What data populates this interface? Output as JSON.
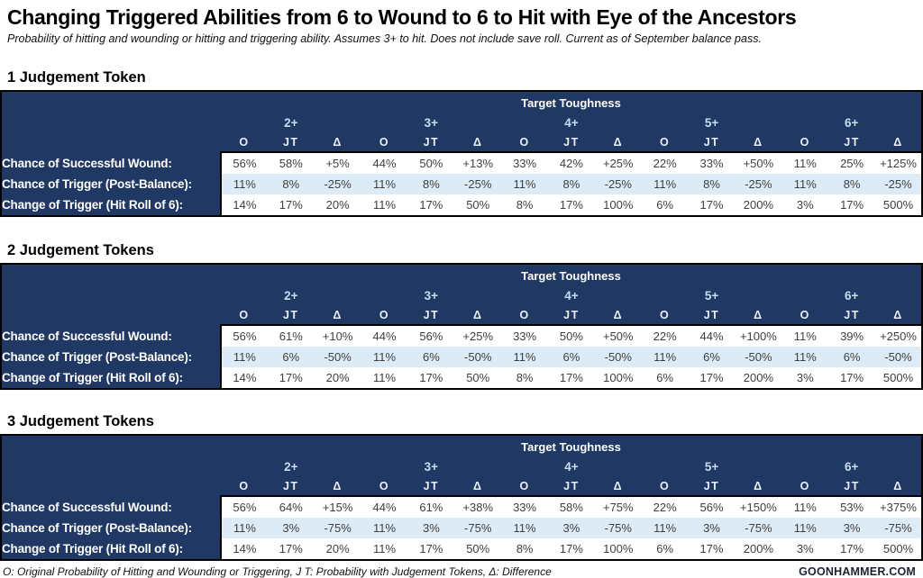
{
  "page": {
    "title": "Changing Triggered Abilities from 6 to Wound to 6 to Hit with Eye of the Ancestors",
    "subtitle": "Probability of hitting and wounding or hitting and triggering ability. Assumes 3+ to hit. Does not include save roll. Current as of September balance pass."
  },
  "colors": {
    "table_background": "#1F3864",
    "stripe_row": "#DDEBF7",
    "cell_text": "#3F3F3F",
    "header_text": "#FFFFFF",
    "group_header_text": "#C9DCF0"
  },
  "footer": {
    "legend": "O: Original Probability of Hitting and Wounding or Triggering, J T: Probability with Judgement Tokens, Δ: Difference",
    "brand": "GOONHAMMER.COM"
  },
  "chart_data": [
    {
      "type": "table",
      "title": "1 Judgement Token",
      "header": "Target Toughness",
      "column_groups": [
        "2+",
        "3+",
        "4+",
        "5+",
        "6+"
      ],
      "sub_columns": [
        "O",
        "JT",
        "Δ"
      ],
      "rows": [
        {
          "label": "Chance of Successful Wound:",
          "values": [
            "56%",
            "58%",
            "+5%",
            "44%",
            "50%",
            "+13%",
            "33%",
            "42%",
            "+25%",
            "22%",
            "33%",
            "+50%",
            "11%",
            "25%",
            "+125%"
          ]
        },
        {
          "label": "Chance of Trigger (Post-Balance):",
          "values": [
            "11%",
            "8%",
            "-25%",
            "11%",
            "8%",
            "-25%",
            "11%",
            "8%",
            "-25%",
            "11%",
            "8%",
            "-25%",
            "11%",
            "8%",
            "-25%"
          ]
        },
        {
          "label": "Change of Trigger (Hit Roll of 6):",
          "values": [
            "14%",
            "17%",
            "20%",
            "11%",
            "17%",
            "50%",
            "8%",
            "17%",
            "100%",
            "6%",
            "17%",
            "200%",
            "3%",
            "17%",
            "500%"
          ]
        }
      ]
    },
    {
      "type": "table",
      "title": "2 Judgement Tokens",
      "header": "Target Toughness",
      "column_groups": [
        "2+",
        "3+",
        "4+",
        "5+",
        "6+"
      ],
      "sub_columns": [
        "O",
        "JT",
        "Δ"
      ],
      "rows": [
        {
          "label": "Chance of Successful Wound:",
          "values": [
            "56%",
            "61%",
            "+10%",
            "44%",
            "56%",
            "+25%",
            "33%",
            "50%",
            "+50%",
            "22%",
            "44%",
            "+100%",
            "11%",
            "39%",
            "+250%"
          ]
        },
        {
          "label": "Chance of Trigger (Post-Balance):",
          "values": [
            "11%",
            "6%",
            "-50%",
            "11%",
            "6%",
            "-50%",
            "11%",
            "6%",
            "-50%",
            "11%",
            "6%",
            "-50%",
            "11%",
            "6%",
            "-50%"
          ]
        },
        {
          "label": "Change of Trigger (Hit Roll of 6):",
          "values": [
            "14%",
            "17%",
            "20%",
            "11%",
            "17%",
            "50%",
            "8%",
            "17%",
            "100%",
            "6%",
            "17%",
            "200%",
            "3%",
            "17%",
            "500%"
          ]
        }
      ]
    },
    {
      "type": "table",
      "title": "3 Judgement Tokens",
      "header": "Target Toughness",
      "column_groups": [
        "2+",
        "3+",
        "4+",
        "5+",
        "6+"
      ],
      "sub_columns": [
        "O",
        "JT",
        "Δ"
      ],
      "rows": [
        {
          "label": "Chance of Successful Wound:",
          "values": [
            "56%",
            "64%",
            "+15%",
            "44%",
            "61%",
            "+38%",
            "33%",
            "58%",
            "+75%",
            "22%",
            "56%",
            "+150%",
            "11%",
            "53%",
            "+375%"
          ]
        },
        {
          "label": "Chance of Trigger (Post-Balance):",
          "values": [
            "11%",
            "3%",
            "-75%",
            "11%",
            "3%",
            "-75%",
            "11%",
            "3%",
            "-75%",
            "11%",
            "3%",
            "-75%",
            "11%",
            "3%",
            "-75%"
          ]
        },
        {
          "label": "Change of Trigger (Hit Roll of 6):",
          "values": [
            "14%",
            "17%",
            "20%",
            "11%",
            "17%",
            "50%",
            "8%",
            "17%",
            "100%",
            "6%",
            "17%",
            "200%",
            "3%",
            "17%",
            "500%"
          ]
        }
      ]
    }
  ]
}
